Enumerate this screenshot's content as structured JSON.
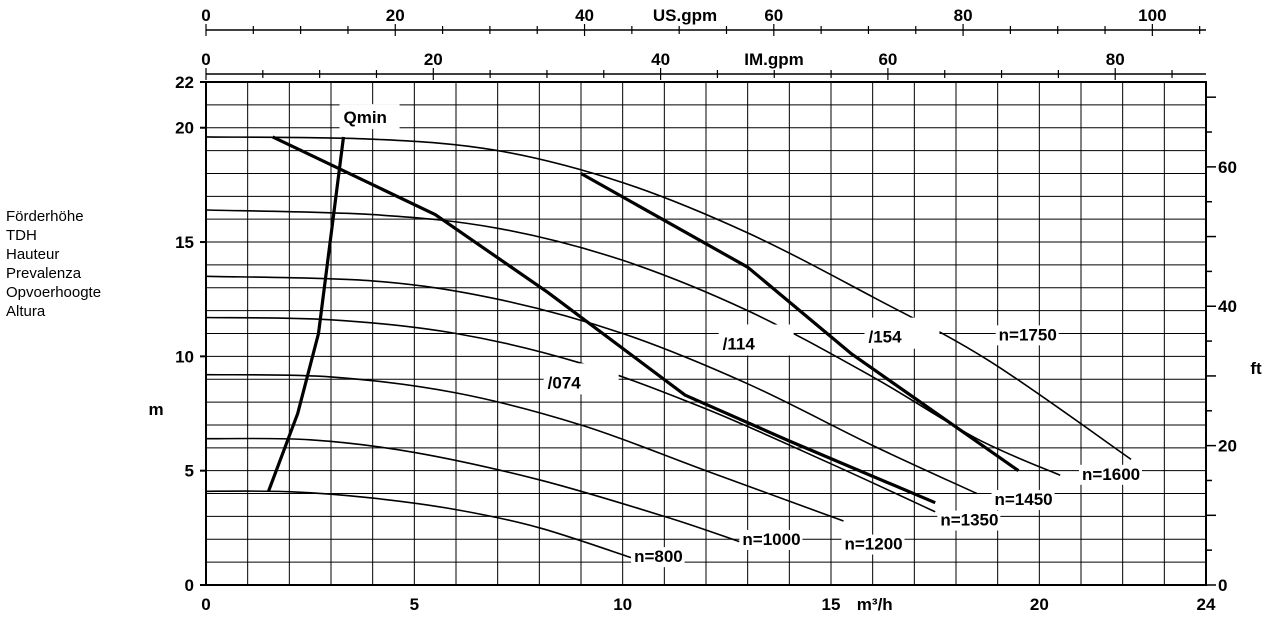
{
  "chart_data": {
    "type": "line",
    "title": "",
    "x_axis": {
      "label": "m³/h",
      "range": [
        0,
        24
      ],
      "ticks": [
        0,
        5,
        10,
        15,
        20,
        24
      ],
      "tick_labels": [
        "0",
        "5",
        "10",
        "15",
        "20",
        "24"
      ]
    },
    "top_axes": [
      {
        "label": "US.gpm",
        "ticks": [
          0,
          20,
          40,
          60,
          80,
          100
        ],
        "tick_labels": [
          "0",
          "20",
          "40",
          "60",
          "80",
          "100"
        ],
        "unit_per_m3h": 4.4029
      },
      {
        "label": "IM.gpm",
        "ticks": [
          0,
          20,
          40,
          60,
          80
        ],
        "tick_labels": [
          "0",
          "20",
          "40",
          "60",
          "80"
        ],
        "unit_per_m3h": 3.6662
      }
    ],
    "y_axis": {
      "label": "m",
      "range": [
        0,
        22
      ],
      "ticks": [
        0,
        5,
        10,
        15,
        20,
        22
      ],
      "tick_labels": [
        "0",
        "5",
        "10",
        "15",
        "20",
        "22"
      ],
      "side_labels": [
        "Förderhöhe",
        "TDH",
        "Hauteur",
        "Prevalenza",
        "Opvoerhoogte",
        "Altura"
      ]
    },
    "y2_axis": {
      "label": "ft",
      "ticks": [
        0,
        20,
        40,
        60
      ],
      "tick_labels": [
        "0",
        "20",
        "40",
        "60"
      ],
      "m_per_ft": 0.3048
    },
    "grid": true,
    "series": [
      {
        "name": "n=800",
        "points": [
          [
            0,
            4.1
          ],
          [
            2,
            4.08
          ],
          [
            4,
            3.8
          ],
          [
            6,
            3.3
          ],
          [
            8,
            2.5
          ],
          [
            10.2,
            1.2
          ]
        ]
      },
      {
        "name": "n=1000",
        "points": [
          [
            0,
            6.4
          ],
          [
            2.5,
            6.35
          ],
          [
            5,
            5.8
          ],
          [
            8,
            4.6
          ],
          [
            11,
            3.0
          ],
          [
            12.8,
            1.9
          ]
        ]
      },
      {
        "name": "n=1200",
        "points": [
          [
            0,
            9.2
          ],
          [
            3,
            9.1
          ],
          [
            6,
            8.4
          ],
          [
            9,
            7.0
          ],
          [
            12,
            5.0
          ],
          [
            15.3,
            2.8
          ]
        ]
      },
      {
        "name": "n=1350",
        "points": [
          [
            0,
            11.7
          ],
          [
            3,
            11.6
          ],
          [
            6,
            11.0
          ],
          [
            9,
            9.7
          ],
          [
            12,
            7.7
          ],
          [
            15,
            5.3
          ],
          [
            17.5,
            3.2
          ]
        ]
      },
      {
        "name": "n=1450",
        "points": [
          [
            0,
            13.5
          ],
          [
            4,
            13.3
          ],
          [
            7,
            12.5
          ],
          [
            10,
            11.0
          ],
          [
            13,
            8.8
          ],
          [
            16,
            6.1
          ],
          [
            18.5,
            4.0
          ]
        ]
      },
      {
        "name": "n=1600",
        "points": [
          [
            0,
            16.4
          ],
          [
            4,
            16.2
          ],
          [
            7,
            15.6
          ],
          [
            10,
            14.2
          ],
          [
            13,
            12.0
          ],
          [
            16,
            9.1
          ],
          [
            18.5,
            6.4
          ],
          [
            20.5,
            4.8
          ]
        ]
      },
      {
        "name": "n=1750",
        "points": [
          [
            0,
            19.6
          ],
          [
            4,
            19.5
          ],
          [
            7,
            19.0
          ],
          [
            10,
            17.6
          ],
          [
            13,
            15.4
          ],
          [
            16,
            12.6
          ],
          [
            18.8,
            9.8
          ],
          [
            22.2,
            5.5
          ]
        ]
      }
    ],
    "limit_lines": [
      {
        "name": "Qmin",
        "points": [
          [
            1.5,
            4.1
          ],
          [
            2.2,
            7.5
          ],
          [
            2.7,
            11.0
          ],
          [
            3.3,
            19.6
          ]
        ]
      },
      {
        "name": "/074",
        "points": [
          [
            1.6,
            19.6
          ],
          [
            5.5,
            16.2
          ],
          [
            8.2,
            12.8
          ],
          [
            11.5,
            8.3
          ],
          [
            14,
            6.3
          ],
          [
            17.5,
            3.6
          ]
        ]
      },
      {
        "name": "/114",
        "points": [
          [
            9,
            18.0
          ],
          [
            13,
            13.9
          ],
          [
            15.5,
            10.1
          ],
          [
            19.5,
            5.0
          ]
        ]
      },
      {
        "name": "/154",
        "points": []
      }
    ],
    "annotations": [
      {
        "text": "Qmin",
        "x": 3.3,
        "y": 20.2
      },
      {
        "text": "/074",
        "x": 8.2,
        "y": 8.6
      },
      {
        "text": "/114",
        "x": 12.4,
        "y": 10.3
      },
      {
        "text": "/154",
        "x": 15.9,
        "y": 10.6
      }
    ]
  }
}
